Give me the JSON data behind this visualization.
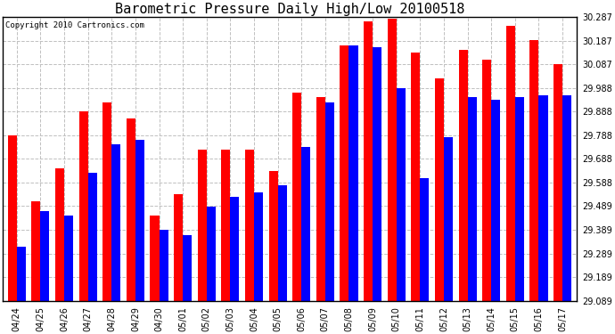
{
  "title": "Barometric Pressure Daily High/Low 20100518",
  "copyright": "Copyright 2010 Cartronics.com",
  "dates": [
    "04/24",
    "04/25",
    "04/26",
    "04/27",
    "04/28",
    "04/29",
    "04/30",
    "05/01",
    "05/02",
    "05/03",
    "05/04",
    "05/05",
    "05/06",
    "05/07",
    "05/08",
    "05/09",
    "05/10",
    "05/11",
    "05/12",
    "05/13",
    "05/14",
    "05/15",
    "05/16",
    "05/17"
  ],
  "highs": [
    29.788,
    29.508,
    29.648,
    29.888,
    29.928,
    29.858,
    29.448,
    29.538,
    29.728,
    29.728,
    29.728,
    29.638,
    29.968,
    29.948,
    30.168,
    30.268,
    30.278,
    30.138,
    30.028,
    30.148,
    30.108,
    30.248,
    30.188,
    30.088
  ],
  "lows": [
    29.318,
    29.468,
    29.448,
    29.628,
    29.748,
    29.768,
    29.388,
    29.368,
    29.488,
    29.528,
    29.548,
    29.578,
    29.738,
    29.928,
    30.168,
    30.158,
    29.988,
    29.608,
    29.778,
    29.948,
    29.938,
    29.948,
    29.958,
    29.958
  ],
  "high_color": "#ff0000",
  "low_color": "#0000ff",
  "bg_color": "#ffffff",
  "grid_color": "#c0c0c0",
  "ylim_min": 29.089,
  "ylim_max": 30.287,
  "yticks": [
    29.089,
    29.189,
    29.289,
    29.389,
    29.489,
    29.588,
    29.688,
    29.788,
    29.888,
    29.988,
    30.087,
    30.187,
    30.287
  ],
  "ytick_labels": [
    "29.089",
    "29.189",
    "29.289",
    "29.389",
    "29.489",
    "29.588",
    "29.688",
    "29.788",
    "29.888",
    "29.988",
    "30.087",
    "30.187",
    "30.287"
  ],
  "bar_width": 0.38,
  "title_fontsize": 11,
  "copyright_fontsize": 6.5,
  "tick_fontsize": 7
}
